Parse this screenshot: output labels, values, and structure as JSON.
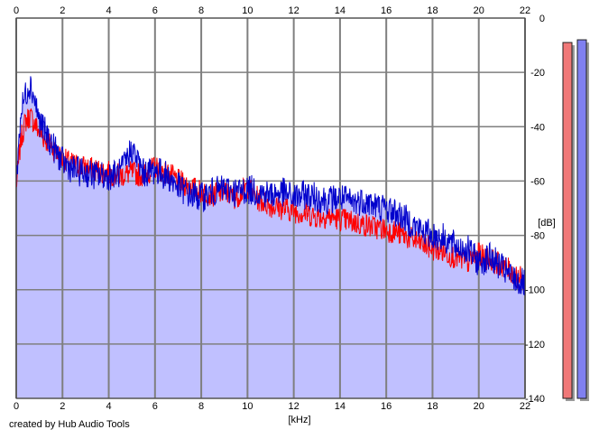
{
  "credit": "created by Hub Audio Tools",
  "chart_data": {
    "type": "line",
    "xlabel": "[kHz]",
    "ylabel": "[dB]",
    "xlim": [
      0,
      22
    ],
    "ylim": [
      -140,
      0
    ],
    "x_ticks": [
      "0",
      "2",
      "4",
      "6",
      "8",
      "10",
      "12",
      "14",
      "16",
      "18",
      "20",
      "22"
    ],
    "y_ticks": [
      "0",
      "-20",
      "-40",
      "-60",
      "-80",
      "-100",
      "-120",
      "-140"
    ],
    "grid": true,
    "colors": {
      "red_series": "#ff0000",
      "blue_series": "#0000cc",
      "fill": "#c0c0ff",
      "meter_red": "#f07878",
      "meter_blue": "#8080f0"
    },
    "series": [
      {
        "color": "#ff0000",
        "x": [
          0,
          0.2,
          0.4,
          0.6,
          0.8,
          1.0,
          1.5,
          2.0,
          2.5,
          3.0,
          3.5,
          4.0,
          4.5,
          5.0,
          5.5,
          6.0,
          6.5,
          7.0,
          7.5,
          8.0,
          8.5,
          9.0,
          9.5,
          10.0,
          10.5,
          11.0,
          11.5,
          12.0,
          12.5,
          13.0,
          13.5,
          14.0,
          14.5,
          15.0,
          15.5,
          16.0,
          16.5,
          17.0,
          17.5,
          18.0,
          18.5,
          19.0,
          19.5,
          20.0,
          20.5,
          21.0,
          21.5,
          22.0
        ],
        "y": [
          -62,
          -45,
          -38,
          -36,
          -39,
          -42,
          -47,
          -52,
          -54,
          -55,
          -56,
          -57,
          -58,
          -57,
          -58,
          -55,
          -57,
          -60,
          -62,
          -64,
          -65,
          -64,
          -66,
          -62,
          -67,
          -69,
          -70,
          -71,
          -72,
          -73,
          -73,
          -74,
          -75,
          -76,
          -77,
          -78,
          -79,
          -81,
          -83,
          -85,
          -86,
          -88,
          -90,
          -87,
          -89,
          -91,
          -94,
          -97
        ]
      },
      {
        "color": "#0000cc",
        "x": [
          0,
          0.2,
          0.4,
          0.6,
          0.8,
          1.0,
          1.5,
          2.0,
          2.5,
          3.0,
          3.5,
          4.0,
          4.5,
          5.0,
          5.5,
          6.0,
          6.5,
          7.0,
          7.5,
          8.0,
          8.5,
          9.0,
          9.5,
          10.0,
          10.5,
          11.0,
          11.5,
          12.0,
          12.5,
          13.0,
          13.5,
          14.0,
          14.5,
          15.0,
          15.5,
          16.0,
          16.5,
          17.0,
          17.5,
          18.0,
          18.5,
          19.0,
          19.5,
          20.0,
          20.5,
          21.0,
          21.5,
          22.0
        ],
        "y": [
          -60,
          -35,
          -28,
          -24,
          -30,
          -38,
          -46,
          -53,
          -56,
          -57,
          -58,
          -58,
          -57,
          -48,
          -57,
          -56,
          -58,
          -62,
          -65,
          -66,
          -64,
          -63,
          -64,
          -63,
          -64,
          -65,
          -64,
          -66,
          -65,
          -66,
          -67,
          -66,
          -68,
          -67,
          -69,
          -70,
          -72,
          -75,
          -78,
          -80,
          -81,
          -84,
          -85,
          -90,
          -88,
          -92,
          -96,
          -98
        ]
      }
    ],
    "level_meters": [
      {
        "color": "#f07878",
        "value_db": -9
      },
      {
        "color": "#8080f0",
        "value_db": -8
      }
    ]
  }
}
